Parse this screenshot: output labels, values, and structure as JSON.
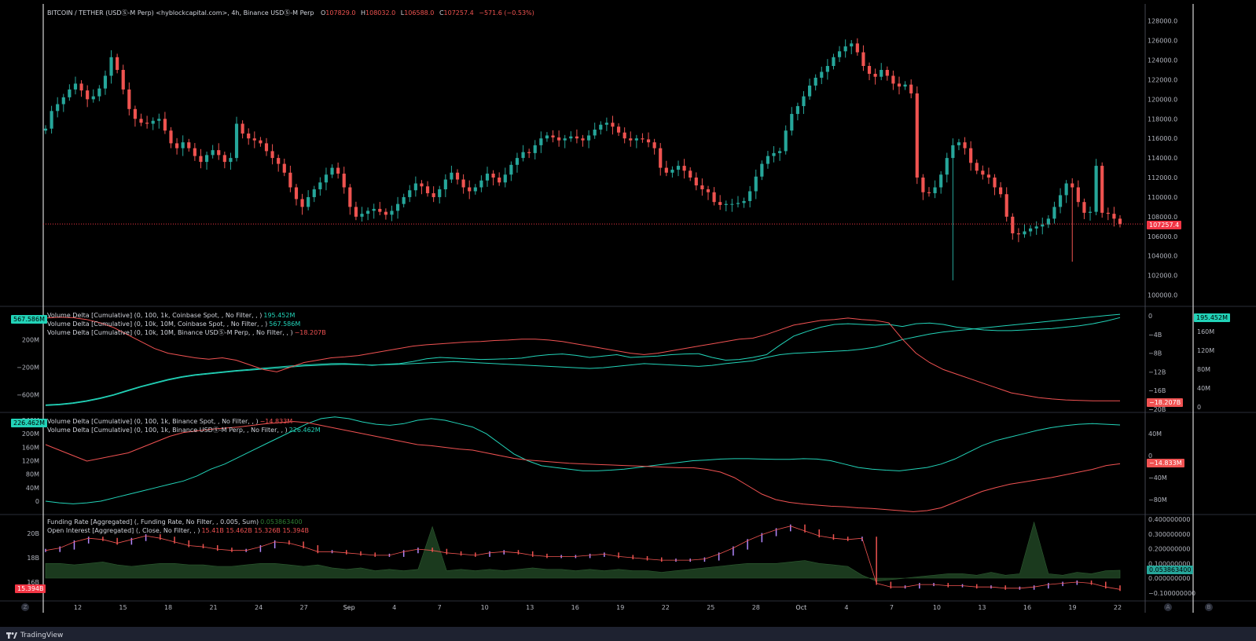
{
  "header": {
    "symbol": "BITCOIN / TETHER (USDⓈ-M Perp) <hyblockcapital.com>, 4h, Binance USDⓈ-M Perp",
    "o_label": "O",
    "o_value": "107829.0",
    "h_label": "H",
    "h_value": "108032.0",
    "l_label": "L",
    "l_value": "106588.0",
    "c_label": "C",
    "c_value": "107257.4",
    "change": "−571.6 (−0.53%)"
  },
  "colors": {
    "up": "#26a69a",
    "down": "#ef5350",
    "teal": "#22d3b8",
    "red": "#f05252",
    "bg": "#000000",
    "grid_text": "#b2b5be"
  },
  "footer": {
    "brand": "TradingView",
    "btn_z": "Z",
    "btn_a": "A",
    "btn_b": "B"
  },
  "chart_data": [
    {
      "type": "candlestick",
      "title": "BITCOIN / TETHER (USDⓈ-M Perp) 4h",
      "x_ticks": [
        "12",
        "15",
        "18",
        "21",
        "24",
        "27",
        "Sep",
        "4",
        "7",
        "10",
        "13",
        "16",
        "19",
        "22",
        "25",
        "28",
        "Oct",
        "4",
        "7",
        "10",
        "13",
        "16",
        "19",
        "22"
      ],
      "y_ticks": [
        "128000.0",
        "126000.0",
        "124000.0",
        "122000.0",
        "120000.0",
        "118000.0",
        "116000.0",
        "114000.0",
        "112000.0",
        "110000.0",
        "108000.0",
        "106000.0",
        "104000.0",
        "102000.0",
        "100000.0"
      ],
      "ylim": [
        99000,
        129500
      ],
      "last_price": "107257.4",
      "closes": [
        117000,
        118800,
        119500,
        120200,
        121000,
        121600,
        120900,
        120000,
        120300,
        121100,
        122400,
        124300,
        123000,
        121000,
        119000,
        118000,
        117600,
        117500,
        117800,
        118000,
        116800,
        115500,
        115000,
        115600,
        115000,
        114200,
        113600,
        114300,
        114800,
        114300,
        113600,
        114000,
        117500,
        116500,
        116000,
        115800,
        115500,
        114700,
        114000,
        113400,
        112500,
        111000,
        109800,
        109000,
        110000,
        110800,
        111500,
        112300,
        113000,
        112400,
        111000,
        109000,
        108000,
        108300,
        108600,
        108800,
        108500,
        108200,
        108600,
        109300,
        110000,
        110700,
        111400,
        111100,
        110400,
        110000,
        110800,
        111800,
        112500,
        111800,
        111000,
        110600,
        111000,
        111700,
        112400,
        112000,
        111500,
        112300,
        113300,
        114000,
        114600,
        114500,
        115300,
        116000,
        116300,
        116100,
        115800,
        116000,
        116200,
        116000,
        115800,
        116300,
        116900,
        117400,
        117600,
        117200,
        116600,
        116000,
        115800,
        116000,
        115900,
        115600,
        115000,
        113000,
        112500,
        112800,
        113200,
        112700,
        112000,
        111200,
        110800,
        110500,
        109500,
        109200,
        109300,
        109300,
        109400,
        109600,
        110600,
        112100,
        113400,
        114200,
        114500,
        114700,
        116800,
        118500,
        119300,
        120300,
        121400,
        122200,
        122800,
        123400,
        124300,
        124900,
        125400,
        125700,
        124800,
        123400,
        122600,
        122300,
        123000,
        122400,
        121600,
        121300,
        121500,
        120600,
        112000,
        110500,
        110400,
        111000,
        112300,
        114000,
        115300,
        115600,
        115000,
        113500,
        112700,
        112300,
        112000,
        111000,
        110300,
        108000,
        106300,
        106200,
        106500,
        106800,
        107000,
        107200,
        107800,
        109000,
        110200,
        111400,
        111000,
        109500,
        108400,
        108500,
        113200,
        108400,
        108300,
        107800,
        107257
      ]
    },
    {
      "type": "line",
      "title": "Volume Delta [Cumulative]",
      "legend": [
        {
          "text": "Volume Delta [Cumulative] (0, 100, 1k, Coinbase Spot, , No Filter, , )",
          "value": "195.452M",
          "color": "teal"
        },
        {
          "text": "Volume Delta [Cumulative] (0, 10k, 10M, Coinbase Spot, , No Filter, , )",
          "value": "567.586M",
          "color": "teal"
        },
        {
          "text": "Volume Delta [Cumulative] (0, 10k, 10M, Binance USDⓈ-M Perp, , No Filter, , )",
          "value": "−18.207B",
          "color": "red"
        }
      ],
      "left_ticks": [
        "200M",
        "−200M",
        "−600M"
      ],
      "right_ticks_a": [
        "0",
        "−4B",
        "−8B",
        "−12B",
        "−16B",
        "−20B"
      ],
      "right_ticks_b": [
        "160M",
        "120M",
        "80M",
        "40M",
        "0"
      ],
      "badge_left": "567.586M",
      "badge_right_top": "195.452M",
      "badge_right_bottom": "−18.207B",
      "series": [
        {
          "name": "Coinbase Spot 100–1k",
          "values": [
            -750,
            -740,
            -720,
            -690,
            -650,
            -600,
            -540,
            -480,
            -430,
            -380,
            -340,
            -310,
            -290,
            -270,
            -250,
            -235,
            -215,
            -200,
            -185,
            -170,
            -160,
            -150,
            -150,
            -160,
            -175,
            -160,
            -150,
            -120,
            -80,
            -60,
            -70,
            -80,
            -90,
            -85,
            -80,
            -70,
            -40,
            -20,
            -10,
            -30,
            -60,
            -40,
            -20,
            -60,
            -50,
            -40,
            -20,
            -10,
            -5,
            -60,
            -100,
            -90,
            -60,
            -20,
            120,
            250,
            320,
            380,
            420,
            430,
            420,
            410,
            420,
            390,
            430,
            440,
            420,
            380,
            360,
            340,
            330,
            330,
            340,
            350,
            360,
            380,
            400,
            430,
            470,
            520
          ]
        },
        {
          "name": "Coinbase Spot 10k–10M",
          "values": [
            -760,
            -750,
            -730,
            -700,
            -660,
            -610,
            -550,
            -490,
            -440,
            -390,
            -350,
            -320,
            -300,
            -280,
            -260,
            -245,
            -230,
            -215,
            -200,
            -185,
            -175,
            -165,
            -160,
            -165,
            -170,
            -165,
            -160,
            -150,
            -140,
            -130,
            -120,
            -130,
            -140,
            -150,
            -160,
            -170,
            -180,
            -190,
            -200,
            -210,
            -220,
            -210,
            -190,
            -170,
            -150,
            -160,
            -170,
            -180,
            -190,
            -175,
            -150,
            -130,
            -110,
            -60,
            -20,
            0,
            10,
            20,
            30,
            40,
            60,
            90,
            140,
            200,
            240,
            280,
            310,
            330,
            350,
            370,
            390,
            410,
            430,
            450,
            470,
            490,
            510,
            530,
            550,
            567
          ]
        },
        {
          "name": "Binance USDⓈ-M Perp 10k–10M",
          "values": [
            -0.5,
            -0.3,
            -0.4,
            -0.8,
            -1.5,
            -2.5,
            -4.0,
            -5.5,
            -7.0,
            -8.0,
            -8.5,
            -9.0,
            -9.3,
            -9.0,
            -9.5,
            -10.5,
            -11.5,
            -12.0,
            -11.0,
            -10.0,
            -9.5,
            -9.0,
            -8.8,
            -8.5,
            -8.0,
            -7.5,
            -7.0,
            -6.5,
            -6.2,
            -6.0,
            -5.8,
            -5.6,
            -5.5,
            -5.3,
            -5.2,
            -5.0,
            -5.0,
            -5.2,
            -5.5,
            -6.0,
            -6.5,
            -7.0,
            -7.5,
            -8.0,
            -8.3,
            -8.0,
            -7.5,
            -7.0,
            -6.5,
            -6.0,
            -5.5,
            -5.0,
            -4.8,
            -4.0,
            -3.0,
            -2.0,
            -1.5,
            -1.0,
            -0.8,
            -0.5,
            -0.8,
            -1.0,
            -1.5,
            -5.0,
            -8.0,
            -10.0,
            -11.5,
            -12.5,
            -13.5,
            -14.5,
            -15.5,
            -16.5,
            -17.0,
            -17.5,
            -17.8,
            -18.0,
            -18.1,
            -18.2,
            -18.2,
            -18.207
          ]
        }
      ]
    },
    {
      "type": "line",
      "title": "Volume Delta [Cumulative] Binance",
      "legend": [
        {
          "text": "Volume Delta [Cumulative] (0, 100, 1k, Binance Spot, , No Filter, , )",
          "value": "−14.833M",
          "color": "red"
        },
        {
          "text": "Volume Delta [Cumulative] (0, 100, 1k, Binance USDⓈ-M Perp, , No Filter, , )",
          "value": "226.462M",
          "color": "teal"
        }
      ],
      "left_ticks": [
        "240M",
        "200M",
        "160M",
        "120M",
        "80M",
        "40M",
        "0"
      ],
      "right_ticks": [
        "40M",
        "0",
        "−40M",
        "−80M"
      ],
      "badge_left": "226.462M",
      "badge_right": "−14.833M",
      "series": [
        {
          "name": "Binance USDⓈ-M Perp",
          "values": [
            0,
            -5,
            -8,
            -5,
            0,
            10,
            20,
            30,
            40,
            50,
            60,
            75,
            95,
            110,
            130,
            150,
            170,
            190,
            210,
            230,
            245,
            250,
            245,
            235,
            228,
            225,
            230,
            240,
            245,
            240,
            230,
            220,
            200,
            170,
            140,
            120,
            105,
            100,
            95,
            90,
            90,
            92,
            95,
            100,
            105,
            110,
            115,
            120,
            122,
            125,
            126,
            126,
            125,
            124,
            124,
            126,
            125,
            120,
            110,
            100,
            95,
            92,
            90,
            95,
            100,
            110,
            125,
            145,
            165,
            180,
            190,
            200,
            210,
            218,
            224,
            228,
            230,
            228,
            226
          ]
        },
        {
          "name": "Binance Spot",
          "values": [
            20,
            10,
            0,
            -10,
            -5,
            0,
            5,
            15,
            25,
            35,
            42,
            45,
            48,
            50,
            52,
            55,
            58,
            60,
            62,
            60,
            55,
            50,
            45,
            40,
            35,
            30,
            25,
            20,
            18,
            15,
            12,
            10,
            5,
            0,
            -5,
            -8,
            -10,
            -12,
            -14,
            -15,
            -16,
            -17,
            -18,
            -19,
            -20,
            -21,
            -22,
            -22,
            -25,
            -30,
            -40,
            -55,
            -70,
            -80,
            -85,
            -88,
            -90,
            -92,
            -93,
            -95,
            -96,
            -98,
            -100,
            -102,
            -100,
            -95,
            -85,
            -75,
            -65,
            -58,
            -52,
            -48,
            -44,
            -40,
            -35,
            -30,
            -25,
            -18,
            -14.8
          ]
        }
      ]
    },
    {
      "type": "bar",
      "title": "Funding Rate / Open Interest",
      "legend": [
        {
          "text": "Funding Rate [Aggregated] (, Funding Rate, No Filter, , 0.005, Sum)",
          "value": "0.053863400",
          "color": "green"
        },
        {
          "text": "Open Interest [Aggregated] (, Close, No Filter, , )",
          "value": "15.41B 15.462B 15.326B 15.394B",
          "color": "red"
        }
      ],
      "left_ticks": [
        "20B",
        "18B",
        "16B"
      ],
      "right_ticks": [
        "0.400000000",
        "0.300000000",
        "0.200000000",
        "0.100000000",
        "0.000000000",
        "−0.100000000"
      ],
      "badge_left": "15.394B",
      "badge_right": "0.053863400",
      "series": [
        {
          "name": "Open Interest",
          "values": [
            18.6,
            18.8,
            19.3,
            19.6,
            19.5,
            19.2,
            19.5,
            19.8,
            19.6,
            19.3,
            19.0,
            18.9,
            18.7,
            18.6,
            18.6,
            18.9,
            19.3,
            19.2,
            18.9,
            18.5,
            18.5,
            18.4,
            18.3,
            18.2,
            18.2,
            18.5,
            18.7,
            18.6,
            18.4,
            18.3,
            18.2,
            18.4,
            18.5,
            18.4,
            18.2,
            18.1,
            18.1,
            18.1,
            18.2,
            18.3,
            18.1,
            18.0,
            17.9,
            17.8,
            17.8,
            17.8,
            17.9,
            18.3,
            18.8,
            19.4,
            19.9,
            20.3,
            20.6,
            20.2,
            19.8,
            19.6,
            19.5,
            19.6,
            15.9,
            15.6,
            15.6,
            15.8,
            15.8,
            15.7,
            15.7,
            15.6,
            15.6,
            15.5,
            15.5,
            15.6,
            15.8,
            15.9,
            16.0,
            15.9,
            15.6,
            15.4
          ]
        },
        {
          "name": "Funding Rate",
          "values": [
            0.1,
            0.1,
            0.09,
            0.1,
            0.11,
            0.09,
            0.08,
            0.09,
            0.1,
            0.1,
            0.09,
            0.09,
            0.08,
            0.08,
            0.09,
            0.1,
            0.1,
            0.09,
            0.08,
            0.09,
            0.07,
            0.06,
            0.07,
            0.05,
            0.06,
            0.05,
            0.06,
            0.35,
            0.05,
            0.06,
            0.05,
            0.06,
            0.05,
            0.06,
            0.07,
            0.06,
            0.06,
            0.05,
            0.06,
            0.05,
            0.06,
            0.05,
            0.05,
            0.04,
            0.05,
            0.06,
            0.07,
            0.08,
            0.09,
            0.1,
            0.1,
            0.1,
            0.11,
            0.12,
            0.1,
            0.09,
            0.08,
            0.02,
            -0.02,
            -0.01,
            0.0,
            0.01,
            0.02,
            0.03,
            0.03,
            0.02,
            0.04,
            0.02,
            0.03,
            0.38,
            0.03,
            0.02,
            0.04,
            0.03,
            0.05,
            0.054
          ]
        }
      ]
    }
  ]
}
